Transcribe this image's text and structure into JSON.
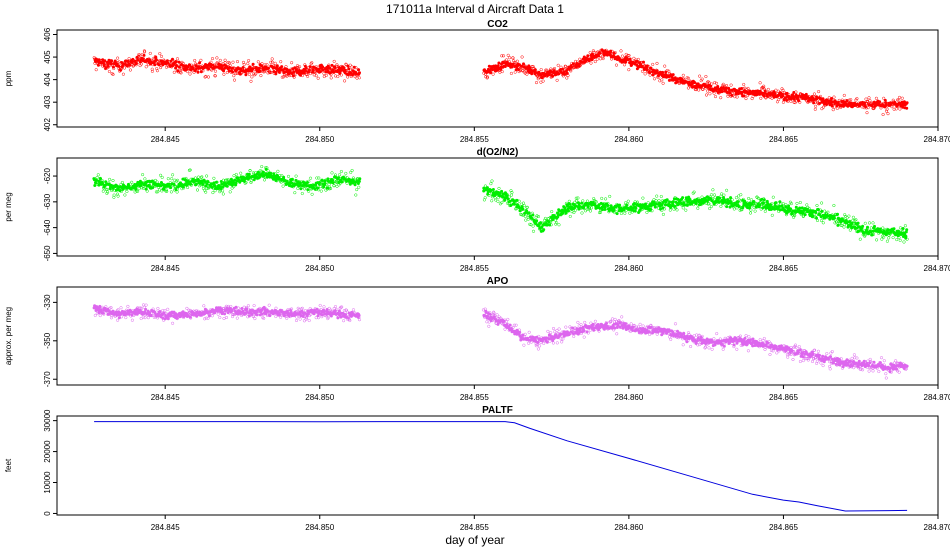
{
  "figure": {
    "title": "171011a   Interval d Aircraft Data 1",
    "xlabel": "day of year"
  },
  "chart_data": [
    {
      "id": "co2",
      "type": "scatter",
      "title": "CO2",
      "xlabel": "",
      "ylabel": "ppm",
      "xlim": [
        284.8415,
        284.87
      ],
      "ylim": [
        401.9,
        406.2
      ],
      "xticks": [
        284.845,
        284.85,
        284.855,
        284.86,
        284.865,
        284.87
      ],
      "xtick_labels": [
        "284.845",
        "284.850",
        "284.855",
        "284.860",
        "284.865",
        "284.870"
      ],
      "yticks": [
        402,
        403,
        404,
        405,
        406
      ],
      "ytick_labels": [
        "402",
        "403",
        "404",
        "405",
        "406"
      ],
      "grid": false,
      "color": "#ff0000",
      "segments": [
        {
          "x": [
            284.8427,
            284.8435,
            284.8443,
            284.8451,
            284.8459,
            284.8467,
            284.8475,
            284.8483,
            284.8491,
            284.8499,
            284.8507,
            284.8513
          ],
          "y": [
            404.8,
            404.6,
            404.9,
            404.7,
            404.5,
            404.6,
            404.4,
            404.5,
            404.3,
            404.5,
            404.4,
            404.3
          ],
          "spread": 0.35
        },
        {
          "x": [
            284.8553,
            284.856,
            284.8565,
            284.8572,
            284.858,
            284.8586,
            284.8592,
            284.8598,
            284.8604,
            284.8611,
            284.8618,
            284.8625,
            284.8632,
            284.864,
            284.8648,
            284.8656,
            284.8664,
            284.8672,
            284.868,
            284.869
          ],
          "y": [
            404.3,
            404.7,
            404.6,
            404.2,
            404.4,
            404.9,
            405.2,
            404.9,
            404.6,
            404.2,
            403.9,
            403.7,
            403.5,
            403.4,
            403.3,
            403.2,
            403.0,
            402.9,
            402.9,
            402.9
          ],
          "spread": 0.3
        }
      ]
    },
    {
      "id": "o2n2",
      "type": "scatter",
      "title": "d(O2/N2)",
      "xlabel": "",
      "ylabel": "per meg",
      "xlim": [
        284.8415,
        284.87
      ],
      "ylim": [
        -651,
        -613
      ],
      "xticks": [
        284.845,
        284.85,
        284.855,
        284.86,
        284.865,
        284.87
      ],
      "xtick_labels": [
        "284.845",
        "284.850",
        "284.855",
        "284.860",
        "284.865",
        "284.870"
      ],
      "yticks": [
        -650,
        -640,
        -630,
        -620
      ],
      "ytick_labels": [
        "-650",
        "-640",
        "-630",
        "-620"
      ],
      "grid": false,
      "color": "#00ee00",
      "segments": [
        {
          "x": [
            284.8427,
            284.8435,
            284.8443,
            284.8451,
            284.8459,
            284.8467,
            284.8475,
            284.8483,
            284.8491,
            284.8499,
            284.8507,
            284.8513
          ],
          "y": [
            -622,
            -625,
            -623,
            -624,
            -622,
            -624,
            -621,
            -619,
            -623,
            -624,
            -621,
            -623
          ],
          "spread": 3
        },
        {
          "x": [
            284.8553,
            284.856,
            284.8566,
            284.8572,
            284.858,
            284.8588,
            284.8596,
            284.8604,
            284.8612,
            284.862,
            284.8628,
            284.8636,
            284.8644,
            284.8652,
            284.866,
            284.8668,
            284.8676,
            284.8684,
            284.869
          ],
          "y": [
            -625,
            -628,
            -633,
            -640,
            -632,
            -631,
            -633,
            -632,
            -631,
            -630,
            -629,
            -631,
            -631,
            -633,
            -634,
            -637,
            -641,
            -642,
            -642
          ],
          "spread": 3.2
        }
      ]
    },
    {
      "id": "apo",
      "type": "scatter",
      "title": "APO",
      "xlabel": "",
      "ylabel": "approx. per meg",
      "xlim": [
        284.8415,
        284.87
      ],
      "ylim": [
        -373,
        -322
      ],
      "xticks": [
        284.845,
        284.85,
        284.855,
        284.86,
        284.865,
        284.87
      ],
      "xtick_labels": [
        "284.845",
        "284.850",
        "284.855",
        "284.860",
        "284.865",
        "284.870"
      ],
      "yticks": [
        -370,
        -350,
        -330
      ],
      "ytick_labels": [
        "-370",
        "-350",
        "-330"
      ],
      "grid": false,
      "color": "#dd66ee",
      "segments": [
        {
          "x": [
            284.8427,
            284.8435,
            284.8443,
            284.8451,
            284.8459,
            284.8467,
            284.8475,
            284.8483,
            284.8491,
            284.8499,
            284.8507,
            284.8513
          ],
          "y": [
            -333,
            -336,
            -335,
            -337,
            -336,
            -334,
            -335,
            -335,
            -336,
            -335,
            -336,
            -337
          ],
          "spread": 3.5
        },
        {
          "x": [
            284.8553,
            284.856,
            284.8566,
            284.8572,
            284.858,
            284.8588,
            284.8596,
            284.8604,
            284.8612,
            284.862,
            284.8628,
            284.8636,
            284.8644,
            284.8652,
            284.866,
            284.8668,
            284.8676,
            284.8684,
            284.869
          ],
          "y": [
            -336,
            -341,
            -349,
            -350,
            -346,
            -343,
            -342,
            -344,
            -345,
            -349,
            -351,
            -350,
            -352,
            -355,
            -358,
            -361,
            -362,
            -364,
            -363
          ],
          "spread": 3.5
        }
      ]
    },
    {
      "id": "paltf",
      "type": "line",
      "title": "PALTF",
      "xlabel": "",
      "ylabel": "feet",
      "xlim": [
        284.8415,
        284.87
      ],
      "ylim": [
        -500,
        31500
      ],
      "xticks": [
        284.845,
        284.85,
        284.855,
        284.86,
        284.865,
        284.87
      ],
      "xtick_labels": [
        "284.845",
        "284.850",
        "284.855",
        "284.860",
        "284.865",
        "284.870"
      ],
      "yticks": [
        0,
        10000,
        20000,
        30000
      ],
      "ytick_labels": [
        "0",
        "10000",
        "20000",
        "30000"
      ],
      "grid": false,
      "color": "#0000dd",
      "series": [
        {
          "x": [
            284.8427,
            284.846,
            284.85,
            284.854,
            284.856,
            284.8563,
            284.8568,
            284.858,
            284.86,
            284.862,
            284.864,
            284.865,
            284.8655,
            284.8661,
            284.867,
            284.869
          ],
          "y": [
            29700,
            29700,
            29650,
            29700,
            29700,
            29300,
            27500,
            23500,
            17800,
            12000,
            6200,
            4300,
            3700,
            2500,
            800,
            1000
          ]
        }
      ]
    }
  ]
}
